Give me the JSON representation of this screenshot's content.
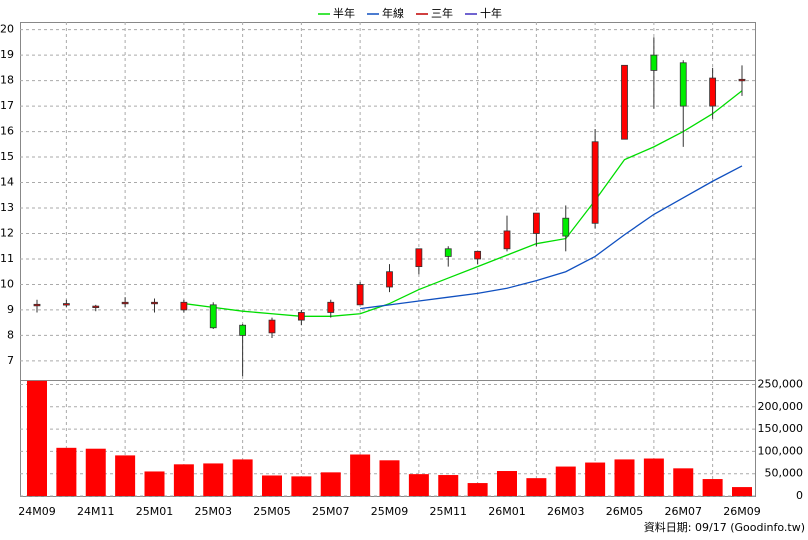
{
  "chart_data": {
    "type": "candlestick",
    "categories": [
      "24M09",
      null,
      "24M11",
      null,
      "25M01",
      null,
      "25M03",
      null,
      "25M05",
      null,
      "25M07",
      null,
      "25M09",
      null,
      "25M11",
      null,
      "26M01",
      null,
      "26M03",
      null,
      "26M05",
      null,
      "26M07",
      null,
      "26M09"
    ],
    "open": [
      9.2,
      9.25,
      9.1,
      9.3,
      9.3,
      9.0,
      9.2,
      8.4,
      8.1,
      8.6,
      8.9,
      9.2,
      9.9,
      10.7,
      11.4,
      11.0,
      11.4,
      12.0,
      12.6,
      12.4,
      15.7,
      19.0,
      18.7,
      17.0,
      18.0
    ],
    "high": [
      9.4,
      9.4,
      9.2,
      9.5,
      9.45,
      9.4,
      9.3,
      8.45,
      8.7,
      9.0,
      9.4,
      10.1,
      10.8,
      11.4,
      11.5,
      11.3,
      12.7,
      12.8,
      13.1,
      16.1,
      18.6,
      19.7,
      18.8,
      18.5,
      18.6
    ],
    "low": [
      8.9,
      9.1,
      8.95,
      9.1,
      8.9,
      8.9,
      8.25,
      6.4,
      7.9,
      8.4,
      8.7,
      9.2,
      9.7,
      10.4,
      10.7,
      10.8,
      11.3,
      11.5,
      11.3,
      12.2,
      15.7,
      16.9,
      15.4,
      16.5,
      17.4
    ],
    "close": [
      9.22,
      9.25,
      9.15,
      9.3,
      9.3,
      9.3,
      8.3,
      8.0,
      8.6,
      8.9,
      9.3,
      10.0,
      10.5,
      11.4,
      11.1,
      11.3,
      12.1,
      12.8,
      11.9,
      15.6,
      18.6,
      18.4,
      17.0,
      18.1,
      18.05
    ],
    "up_color": "#ff0000",
    "down_color": "#00ee00",
    "ylim": [
      6.25,
      20.3
    ],
    "yticks": [
      7,
      8,
      9,
      10,
      11,
      12,
      13,
      14,
      15,
      16,
      17,
      18,
      19,
      20
    ],
    "grid": true,
    "legend": "top",
    "series": [
      {
        "name": "半年",
        "color": "#00dd00",
        "values": [
          null,
          null,
          null,
          null,
          null,
          9.25,
          9.1,
          8.95,
          8.85,
          8.75,
          8.75,
          8.85,
          9.25,
          9.8,
          10.25,
          10.7,
          11.15,
          11.6,
          11.8,
          13.3,
          14.9,
          15.4,
          16.0,
          16.7,
          17.6
        ]
      },
      {
        "name": "年線",
        "color": "#1050c0",
        "values": [
          null,
          null,
          null,
          null,
          null,
          null,
          null,
          null,
          null,
          null,
          null,
          9.05,
          9.2,
          9.35,
          9.5,
          9.65,
          9.85,
          10.15,
          10.5,
          11.1,
          11.95,
          12.75,
          13.4,
          14.05,
          14.65
        ]
      },
      {
        "name": "三年",
        "color": "#c00000",
        "values": [
          null,
          null,
          null,
          null,
          null,
          null,
          null,
          null,
          null,
          null,
          null,
          null,
          null,
          null,
          null,
          null,
          null,
          null,
          null,
          null,
          null,
          null,
          null,
          null,
          null
        ]
      },
      {
        "name": "十年",
        "color": "#4030c0",
        "values": [
          null,
          null,
          null,
          null,
          null,
          null,
          null,
          null,
          null,
          null,
          null,
          null,
          null,
          null,
          null,
          null,
          null,
          null,
          null,
          null,
          null,
          null,
          null,
          null,
          null
        ]
      }
    ],
    "volume": {
      "color": "#ff0000",
      "values": [
        258000,
        108000,
        106000,
        91000,
        55000,
        71000,
        73000,
        82000,
        46000,
        44000,
        53000,
        93000,
        80000,
        49000,
        47000,
        29000,
        56000,
        40000,
        66000,
        75000,
        82000,
        84000,
        62000,
        38000,
        20000
      ],
      "ylim": [
        0,
        260000
      ],
      "yticks": [
        0,
        {
          "value": 50000,
          "label": "50,000"
        },
        {
          "value": 100000,
          "label": "100,000"
        },
        {
          "value": 150000,
          "label": "150,000"
        },
        {
          "value": 200000,
          "label": "200,000"
        },
        {
          "value": 250000,
          "label": "250,000"
        }
      ]
    },
    "footer": "資料日期: 09/17  (Goodinfo.tw)"
  }
}
